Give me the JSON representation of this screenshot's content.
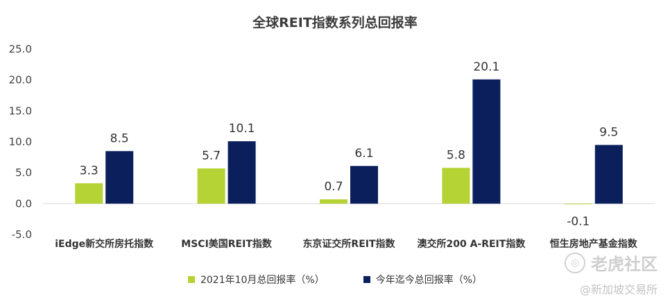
{
  "chart_data": {
    "type": "bar",
    "title": "全球REIT指数系列总回报率",
    "categories": [
      "iEdge新交所房托指数",
      "MSCI美国REIT指数",
      "东京证交所REIT指数",
      "澳交所200 A-REIT指数",
      "恒生房地产基金指数"
    ],
    "series": [
      {
        "name": "2021年10月总回报率（%）",
        "color": "#b5d334",
        "values": [
          3.3,
          5.7,
          0.7,
          5.8,
          -0.1
        ]
      },
      {
        "name": "今年迄今总回报率（%）",
        "color": "#0b1f5c",
        "values": [
          8.5,
          10.1,
          6.1,
          20.1,
          9.5
        ]
      }
    ],
    "ylim": [
      -5,
      25
    ],
    "yticks": [
      "25.0",
      "20.0",
      "15.0",
      "10.0",
      "5.0",
      "0.0",
      "-5.0"
    ],
    "xlabel": "",
    "ylabel": "",
    "grid": false,
    "legend": "bottom"
  },
  "watermark": {
    "logo_text": "老虎社区",
    "handle": "@新加坡交易所"
  }
}
